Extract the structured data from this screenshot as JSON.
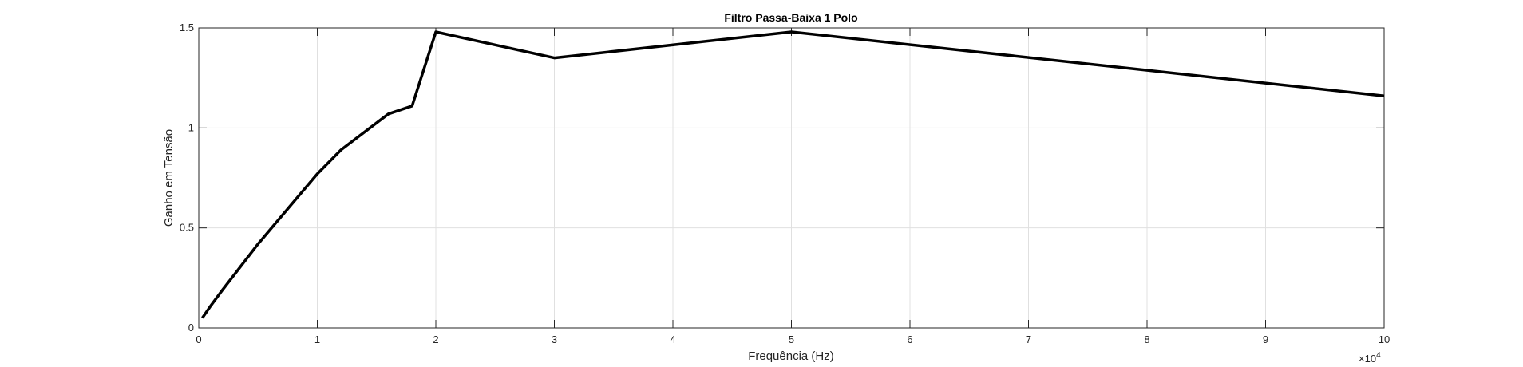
{
  "chart_data": {
    "type": "line",
    "title": "Filtro Passa-Baixa 1 Polo",
    "xlabel": "Frequência (Hz)",
    "ylabel": "Ganho em Tensão",
    "xlim": [
      0,
      100000
    ],
    "ylim": [
      0,
      1.5
    ],
    "x_ticks": [
      0,
      10000,
      20000,
      30000,
      40000,
      50000,
      60000,
      70000,
      80000,
      90000,
      100000
    ],
    "x_tick_labels": [
      "0",
      "1",
      "2",
      "3",
      "4",
      "5",
      "6",
      "7",
      "8",
      "9",
      "10"
    ],
    "x_exponent_label": {
      "base": "×10",
      "power": "4"
    },
    "y_ticks": [
      0,
      0.5,
      1,
      1.5
    ],
    "y_tick_labels": [
      "0",
      "0.5",
      "1",
      "1.5"
    ],
    "grid": true,
    "line_color": "#000000",
    "series": [
      {
        "x": [
          300,
          1000,
          2000,
          5000,
          10000,
          12000,
          16000,
          18000,
          20000,
          30000,
          50000,
          100000
        ],
        "y": [
          0.05,
          0.11,
          0.19,
          0.42,
          0.77,
          0.89,
          1.07,
          1.11,
          1.48,
          1.35,
          1.48,
          1.16
        ]
      }
    ]
  }
}
